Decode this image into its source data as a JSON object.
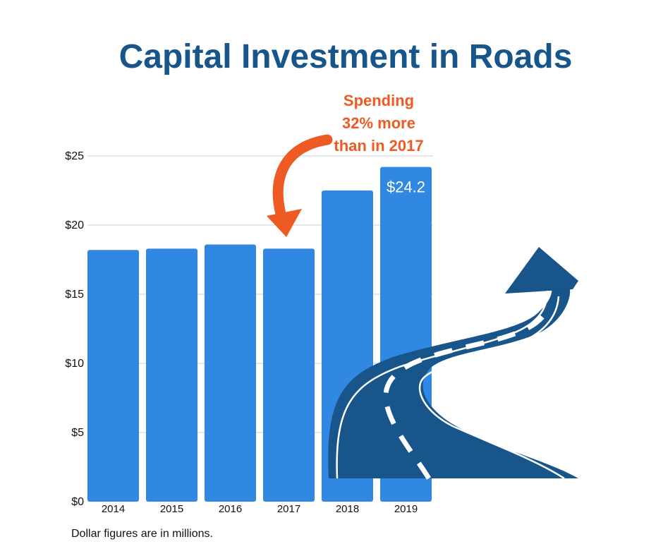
{
  "chart_data": {
    "type": "bar",
    "title": "Capital Investment in Roads",
    "categories": [
      "2014",
      "2015",
      "2016",
      "2017",
      "2018",
      "2019"
    ],
    "values": [
      18.2,
      18.3,
      18.6,
      18.3,
      22.5,
      24.2
    ],
    "ylim": [
      0,
      25
    ],
    "yticks": [
      "$0",
      "$5",
      "$10",
      "$15",
      "$20",
      "$25"
    ],
    "data_labels": {
      "2019": "$24.2"
    },
    "annotation": [
      "Spending",
      "32% more",
      "than in 2017"
    ],
    "footnote": "Dollar figures are in millions.",
    "grid": true,
    "bar_color": "#3088e2",
    "title_color": "#17558a",
    "annotation_color": "#ee5a24",
    "road_color": "#17558a"
  }
}
